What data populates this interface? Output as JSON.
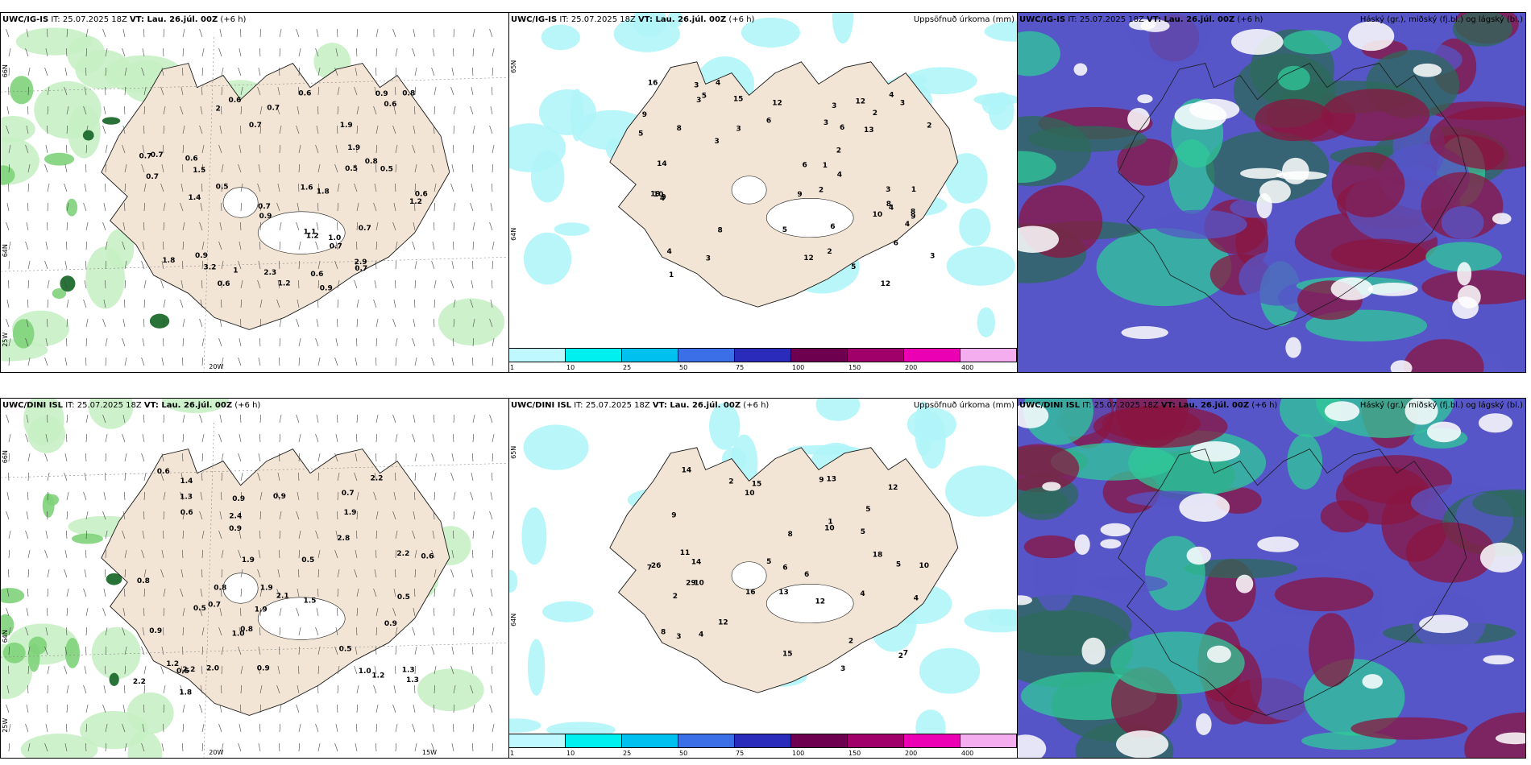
{
  "panels": [
    {
      "id": "p1",
      "type": "wind",
      "model": "UWC/IG-IS",
      "it": "25.07.2025 18Z",
      "vt": "Lau. 26.júl. 00Z",
      "step": "(+6 h)",
      "title": "",
      "lat_labels": [
        "66N",
        "64N",
        "25W"
      ],
      "lon_labels": [
        "20W"
      ],
      "values": [
        "0.9",
        "2",
        "0.9",
        "0.6",
        "0.8",
        "0.6",
        "1.2",
        "0.5",
        "0.9",
        "3.2",
        "1.8",
        "0.7",
        "0.7",
        "1.1",
        "0.5",
        "0.9",
        "0.7",
        "0.6",
        "0.7",
        "0.5",
        "2.9",
        "1.2",
        "0.6",
        "0.7",
        "1.8",
        "1.9",
        "1.4",
        "1.5",
        "1.2",
        "0.7",
        "0.7",
        "0.8",
        "1.9",
        "1",
        "0.6",
        "2.3",
        "0.6",
        "0.7",
        "0.6",
        "1.0",
        "0.7",
        "1.6"
      ]
    },
    {
      "id": "p2",
      "type": "precip",
      "model": "UWC/IG-IS",
      "it": "25.07.2025 18Z",
      "vt": "Lau. 26.júl. 00Z",
      "step": "(+6 h)",
      "title": "Uppsöfnuð úrkoma (mm)",
      "lat_labels": [
        "65N",
        "64N"
      ],
      "values": [
        "2",
        "2",
        "2",
        "1",
        "1",
        "6",
        "4",
        "2",
        "3",
        "3",
        "8",
        "10",
        "13",
        "5",
        "12",
        "9",
        "9",
        "12",
        "8",
        "9",
        "3",
        "12",
        "6",
        "8",
        "19",
        "4",
        "3",
        "9",
        "6",
        "15",
        "10",
        "14",
        "5",
        "3",
        "16",
        "12",
        "8",
        "1",
        "3",
        "6",
        "2",
        "6",
        "4",
        "3",
        "4",
        "4",
        "4",
        "3",
        "5",
        "4",
        "5",
        "3",
        "3"
      ]
    },
    {
      "id": "p3",
      "type": "cloud",
      "model": "UWC/IG-IS",
      "it": "25.07.2025 18Z",
      "vt": "Lau. 26.júl. 00Z",
      "step": "(+6 h)",
      "title": "Háský (gr.), miðský (fj.bl.) og lágský (bl.)"
    },
    {
      "id": "p4",
      "type": "wind",
      "model": "UWC/DINI ISL",
      "it": "25.07.2025 18Z",
      "vt": "Lau. 26.júl. 00Z",
      "step": "(+6 h)",
      "title": "",
      "lat_labels": [
        "66N",
        "64N",
        "25W"
      ],
      "lon_labels": [
        "20W",
        "15W"
      ],
      "values": [
        "1.9",
        "0.9",
        "1.3",
        "2.1",
        "2.2",
        "1.9",
        "2.2",
        "1.0",
        "0.7",
        "2.2",
        "1.3",
        "0.6",
        "1.9",
        "0.6",
        "0.5",
        "1.9",
        "1.2",
        "0.9",
        "0.5",
        "1.3",
        "1.8",
        "0.7",
        "0.5",
        "0.8",
        "0.9",
        "1.2",
        "1.4",
        "2.4",
        "1.5",
        "0.5",
        "0.8",
        "0.9",
        "0.5",
        "2.0",
        "0.9",
        "1.0",
        "0.8",
        "0.6",
        "0.9",
        "2.8",
        "2.2"
      ]
    },
    {
      "id": "p5",
      "type": "precip",
      "model": "UWC/DINI ISL",
      "it": "25.07.2025 18Z",
      "vt": "Lau. 26.júl. 00Z",
      "step": "(+6 h)",
      "title": "Uppsöfnuð úrkoma (mm)",
      "lat_labels": [
        "65N",
        "64N"
      ],
      "values": [
        "4",
        "3",
        "8",
        "4",
        "2",
        "15",
        "5",
        "7",
        "13",
        "12",
        "10",
        "9",
        "5",
        "2",
        "10",
        "6",
        "14",
        "10",
        "16",
        "9",
        "13",
        "15",
        "12",
        "18",
        "12",
        "14",
        "29",
        "26",
        "10",
        "8",
        "11",
        "6",
        "5",
        "7",
        "3",
        "2",
        "1",
        "4",
        "5",
        "2"
      ]
    },
    {
      "id": "p6",
      "type": "cloud",
      "model": "UWC/DINI ISL",
      "it": "25.07.2025 18Z",
      "vt": "Lau. 26.júl. 00Z",
      "step": "(+6 h)",
      "title": "Háský (gr.), miðský (fj.bl.) og lágský (bl.)"
    }
  ],
  "colorbar": {
    "ticks": [
      "1",
      "10",
      "25",
      "50",
      "75",
      "100",
      "150",
      "200",
      "400"
    ],
    "colors": [
      "#bff8ff",
      "#00f0f0",
      "#00c0ef",
      "#3b6fe8",
      "#2b2bbb",
      "#6e0050",
      "#a0006a",
      "#ec00b4",
      "#f4aef0"
    ]
  },
  "colors": {
    "land": "#f2e5d5",
    "wind_light": "#c8efc4",
    "wind_mid": "#7fd37a",
    "wind_dark": "#1e6b2e",
    "precip": "#b0f5f8",
    "cloud_high": "#2e6a5a",
    "cloud_mid": "#5656c8",
    "cloud_low": "#8a1540",
    "cloud_teal": "#2fc99a"
  }
}
